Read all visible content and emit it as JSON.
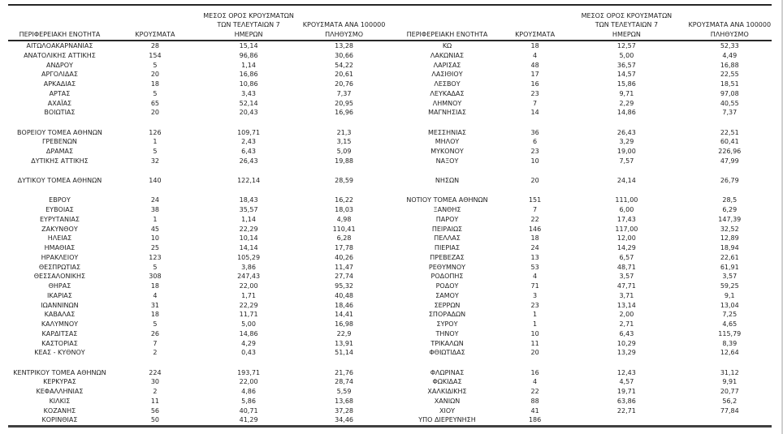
{
  "headers": {
    "region": "ΠΕΡΙΦΕΡΕΙΑΚΗ ΕΝΟΤΗΤΑ",
    "cases": "ΚΡΟΥΣΜΑΤΑ",
    "avg7_lines": [
      "ΜΕΣΟΣ ΟΡΟΣ ΚΡΟΥΣΜΑΤΩΝ",
      "ΤΩΝ ΤΕΛΕΥΤΑΙΩΝ 7",
      "ΗΜΕΡΩΝ"
    ],
    "per100k_lines": [
      "ΚΡΟΥΣΜΑΤΑ ΑΝΑ 100000",
      "ΠΛΗΘΥΣΜΟ"
    ]
  },
  "left_groups": [
    [
      [
        "ΑΙΤΩΛΟΑΚΑΡΝΑΝΙΑΣ",
        "28",
        "15,14",
        "13,28"
      ],
      [
        "ΑΝΑΤΟΛΙΚΗΣ ΑΤΤΙΚΗΣ",
        "154",
        "96,86",
        "30,66"
      ],
      [
        "ΑΝΔΡΟΥ",
        "5",
        "1,14",
        "54,22"
      ],
      [
        "ΑΡΓΟΛΙΔΑΣ",
        "20",
        "16,86",
        "20,61"
      ],
      [
        "ΑΡΚΑΔΙΑΣ",
        "18",
        "10,86",
        "20,76"
      ],
      [
        "ΑΡΤΑΣ",
        "5",
        "3,43",
        "7,37"
      ],
      [
        "ΑΧΑΪΑΣ",
        "65",
        "52,14",
        "20,95"
      ],
      [
        "ΒΟΙΩΤΙΑΣ",
        "20",
        "20,43",
        "16,96"
      ]
    ],
    [
      [
        "ΒΟΡΕΙΟΥ ΤΟΜΕΑ ΑΘΗΝΩΝ",
        "126",
        "109,71",
        "21,3"
      ],
      [
        "ΓΡΕΒΕΝΩΝ",
        "1",
        "2,43",
        "3,15"
      ],
      [
        "ΔΡΑΜΑΣ",
        "5",
        "6,43",
        "5,09"
      ],
      [
        "ΔΥΤΙΚΗΣ ΑΤΤΙΚΗΣ",
        "32",
        "26,43",
        "19,88"
      ]
    ],
    [
      [
        "ΔΥΤΙΚΟΥ ΤΟΜΕΑ ΑΘΗΝΩΝ",
        "140",
        "122,14",
        "28,59"
      ]
    ],
    [
      [
        "ΕΒΡΟΥ",
        "24",
        "18,43",
        "16,22"
      ],
      [
        "ΕΥΒΟΙΑΣ",
        "38",
        "35,57",
        "18,03"
      ],
      [
        "ΕΥΡΥΤΑΝΙΑΣ",
        "1",
        "1,14",
        "4,98"
      ],
      [
        "ΖΑΚΥΝΘΟΥ",
        "45",
        "22,29",
        "110,41"
      ],
      [
        "ΗΛΕΙΑΣ",
        "10",
        "10,14",
        "6,28"
      ],
      [
        "ΗΜΑΘΙΑΣ",
        "25",
        "14,14",
        "17,78"
      ],
      [
        "ΗΡΑΚΛΕΙΟΥ",
        "123",
        "105,29",
        "40,26"
      ],
      [
        "ΘΕΣΠΡΩΤΙΑΣ",
        "5",
        "3,86",
        "11,47"
      ],
      [
        "ΘΕΣΣΑΛΟΝΙΚΗΣ",
        "308",
        "247,43",
        "27,74"
      ],
      [
        "ΘΗΡΑΣ",
        "18",
        "22,00",
        "95,32"
      ],
      [
        "ΙΚΑΡΙΑΣ",
        "4",
        "1,71",
        "40,48"
      ],
      [
        "ΙΩΑΝΝΙΝΩΝ",
        "31",
        "22,29",
        "18,46"
      ],
      [
        "ΚΑΒΑΛΑΣ",
        "18",
        "11,71",
        "14,41"
      ],
      [
        "ΚΑΛΥΜΝΟΥ",
        "5",
        "5,00",
        "16,98"
      ],
      [
        "ΚΑΡΔΙΤΣΑΣ",
        "26",
        "14,86",
        "22,9"
      ],
      [
        "ΚΑΣΤΟΡΙΑΣ",
        "7",
        "4,29",
        "13,91"
      ],
      [
        "ΚΕΑΣ - ΚΥΘΝΟΥ",
        "2",
        "0,43",
        "51,14"
      ]
    ],
    [
      [
        "ΚΕΝΤΡΙΚΟΥ ΤΟΜΕΑ ΑΘΗΝΩΝ",
        "224",
        "193,71",
        "21,76"
      ],
      [
        "ΚΕΡΚΥΡΑΣ",
        "30",
        "22,00",
        "28,74"
      ],
      [
        "ΚΕΦΑΛΛΗΝΙΑΣ",
        "2",
        "4,86",
        "5,59"
      ],
      [
        "ΚΙΛΚΙΣ",
        "11",
        "5,86",
        "13,68"
      ],
      [
        "ΚΟΖΑΝΗΣ",
        "56",
        "40,71",
        "37,28"
      ],
      [
        "ΚΟΡΙΝΘΙΑΣ",
        "50",
        "41,29",
        "34,46"
      ]
    ]
  ],
  "right_groups": [
    [
      [
        "ΚΩ",
        "18",
        "12,57",
        "52,33"
      ],
      [
        "ΛΑΚΩΝΙΑΣ",
        "4",
        "5,00",
        "4,49"
      ],
      [
        "ΛΑΡΙΣΑΣ",
        "48",
        "36,57",
        "16,88"
      ],
      [
        "ΛΑΣΙΘΙΟΥ",
        "17",
        "14,57",
        "22,55"
      ],
      [
        "ΛΕΣΒΟΥ",
        "16",
        "15,86",
        "18,51"
      ],
      [
        "ΛΕΥΚΑΔΑΣ",
        "23",
        "9,71",
        "97,08"
      ],
      [
        "ΛΗΜΝΟΥ",
        "7",
        "2,29",
        "40,55"
      ],
      [
        "ΜΑΓΝΗΣΙΑΣ",
        "14",
        "14,86",
        "7,37"
      ]
    ],
    [
      [
        "ΜΕΣΣΗΝΙΑΣ",
        "36",
        "26,43",
        "22,51"
      ],
      [
        "ΜΗΛΟΥ",
        "6",
        "3,29",
        "60,41"
      ],
      [
        "ΜΥΚΟΝΟΥ",
        "23",
        "19,00",
        "226,96"
      ],
      [
        "ΝΑΞΟΥ",
        "10",
        "7,57",
        "47,99"
      ]
    ],
    [
      [
        "ΝΗΣΩΝ",
        "20",
        "24,14",
        "26,79"
      ]
    ],
    [
      [
        "ΝΟΤΙΟΥ ΤΟΜΕΑ ΑΘΗΝΩΝ",
        "151",
        "111,00",
        "28,5"
      ],
      [
        "ΞΑΝΘΗΣ",
        "7",
        "6,00",
        "6,29"
      ],
      [
        "ΠΑΡΟΥ",
        "22",
        "17,43",
        "147,39"
      ],
      [
        "ΠΕΙΡΑΙΩΣ",
        "146",
        "117,00",
        "32,52"
      ],
      [
        "ΠΕΛΛΑΣ",
        "18",
        "12,00",
        "12,89"
      ],
      [
        "ΠΙΕΡΙΑΣ",
        "24",
        "14,29",
        "18,94"
      ],
      [
        "ΠΡΕΒΕΖΑΣ",
        "13",
        "6,57",
        "22,61"
      ],
      [
        "ΡΕΘΥΜΝΟΥ",
        "53",
        "48,71",
        "61,91"
      ],
      [
        "ΡΟΔΟΠΗΣ",
        "4",
        "3,57",
        "3,57"
      ],
      [
        "ΡΟΔΟΥ",
        "71",
        "47,71",
        "59,25"
      ],
      [
        "ΣΑΜΟΥ",
        "3",
        "3,71",
        "9,1"
      ],
      [
        "ΣΕΡΡΩΝ",
        "23",
        "13,14",
        "13,04"
      ],
      [
        "ΣΠΟΡΑΔΩΝ",
        "1",
        "2,00",
        "7,25"
      ],
      [
        "ΣΥΡΟΥ",
        "1",
        "2,71",
        "4,65"
      ],
      [
        "ΤΗΝΟΥ",
        "10",
        "6,43",
        "115,79"
      ],
      [
        "ΤΡΙΚΑΛΩΝ",
        "11",
        "10,29",
        "8,39"
      ],
      [
        "ΦΘΙΩΤΙΔΑΣ",
        "20",
        "13,29",
        "12,64"
      ]
    ],
    [
      [
        "ΦΛΩΡΙΝΑΣ",
        "16",
        "12,43",
        "31,12"
      ],
      [
        "ΦΩΚΙΔΑΣ",
        "4",
        "4,57",
        "9,91"
      ],
      [
        "ΧΑΛΚΙΔΙΚΗΣ",
        "22",
        "19,71",
        "20,77"
      ],
      [
        "ΧΑΝΙΩΝ",
        "88",
        "63,86",
        "56,2"
      ],
      [
        "ΧΙΟΥ",
        "41",
        "22,71",
        "77,84"
      ],
      [
        "ΥΠΟ ΔΙΕΡΕΥΝΗΣΗ",
        "186",
        "",
        ""
      ]
    ]
  ]
}
